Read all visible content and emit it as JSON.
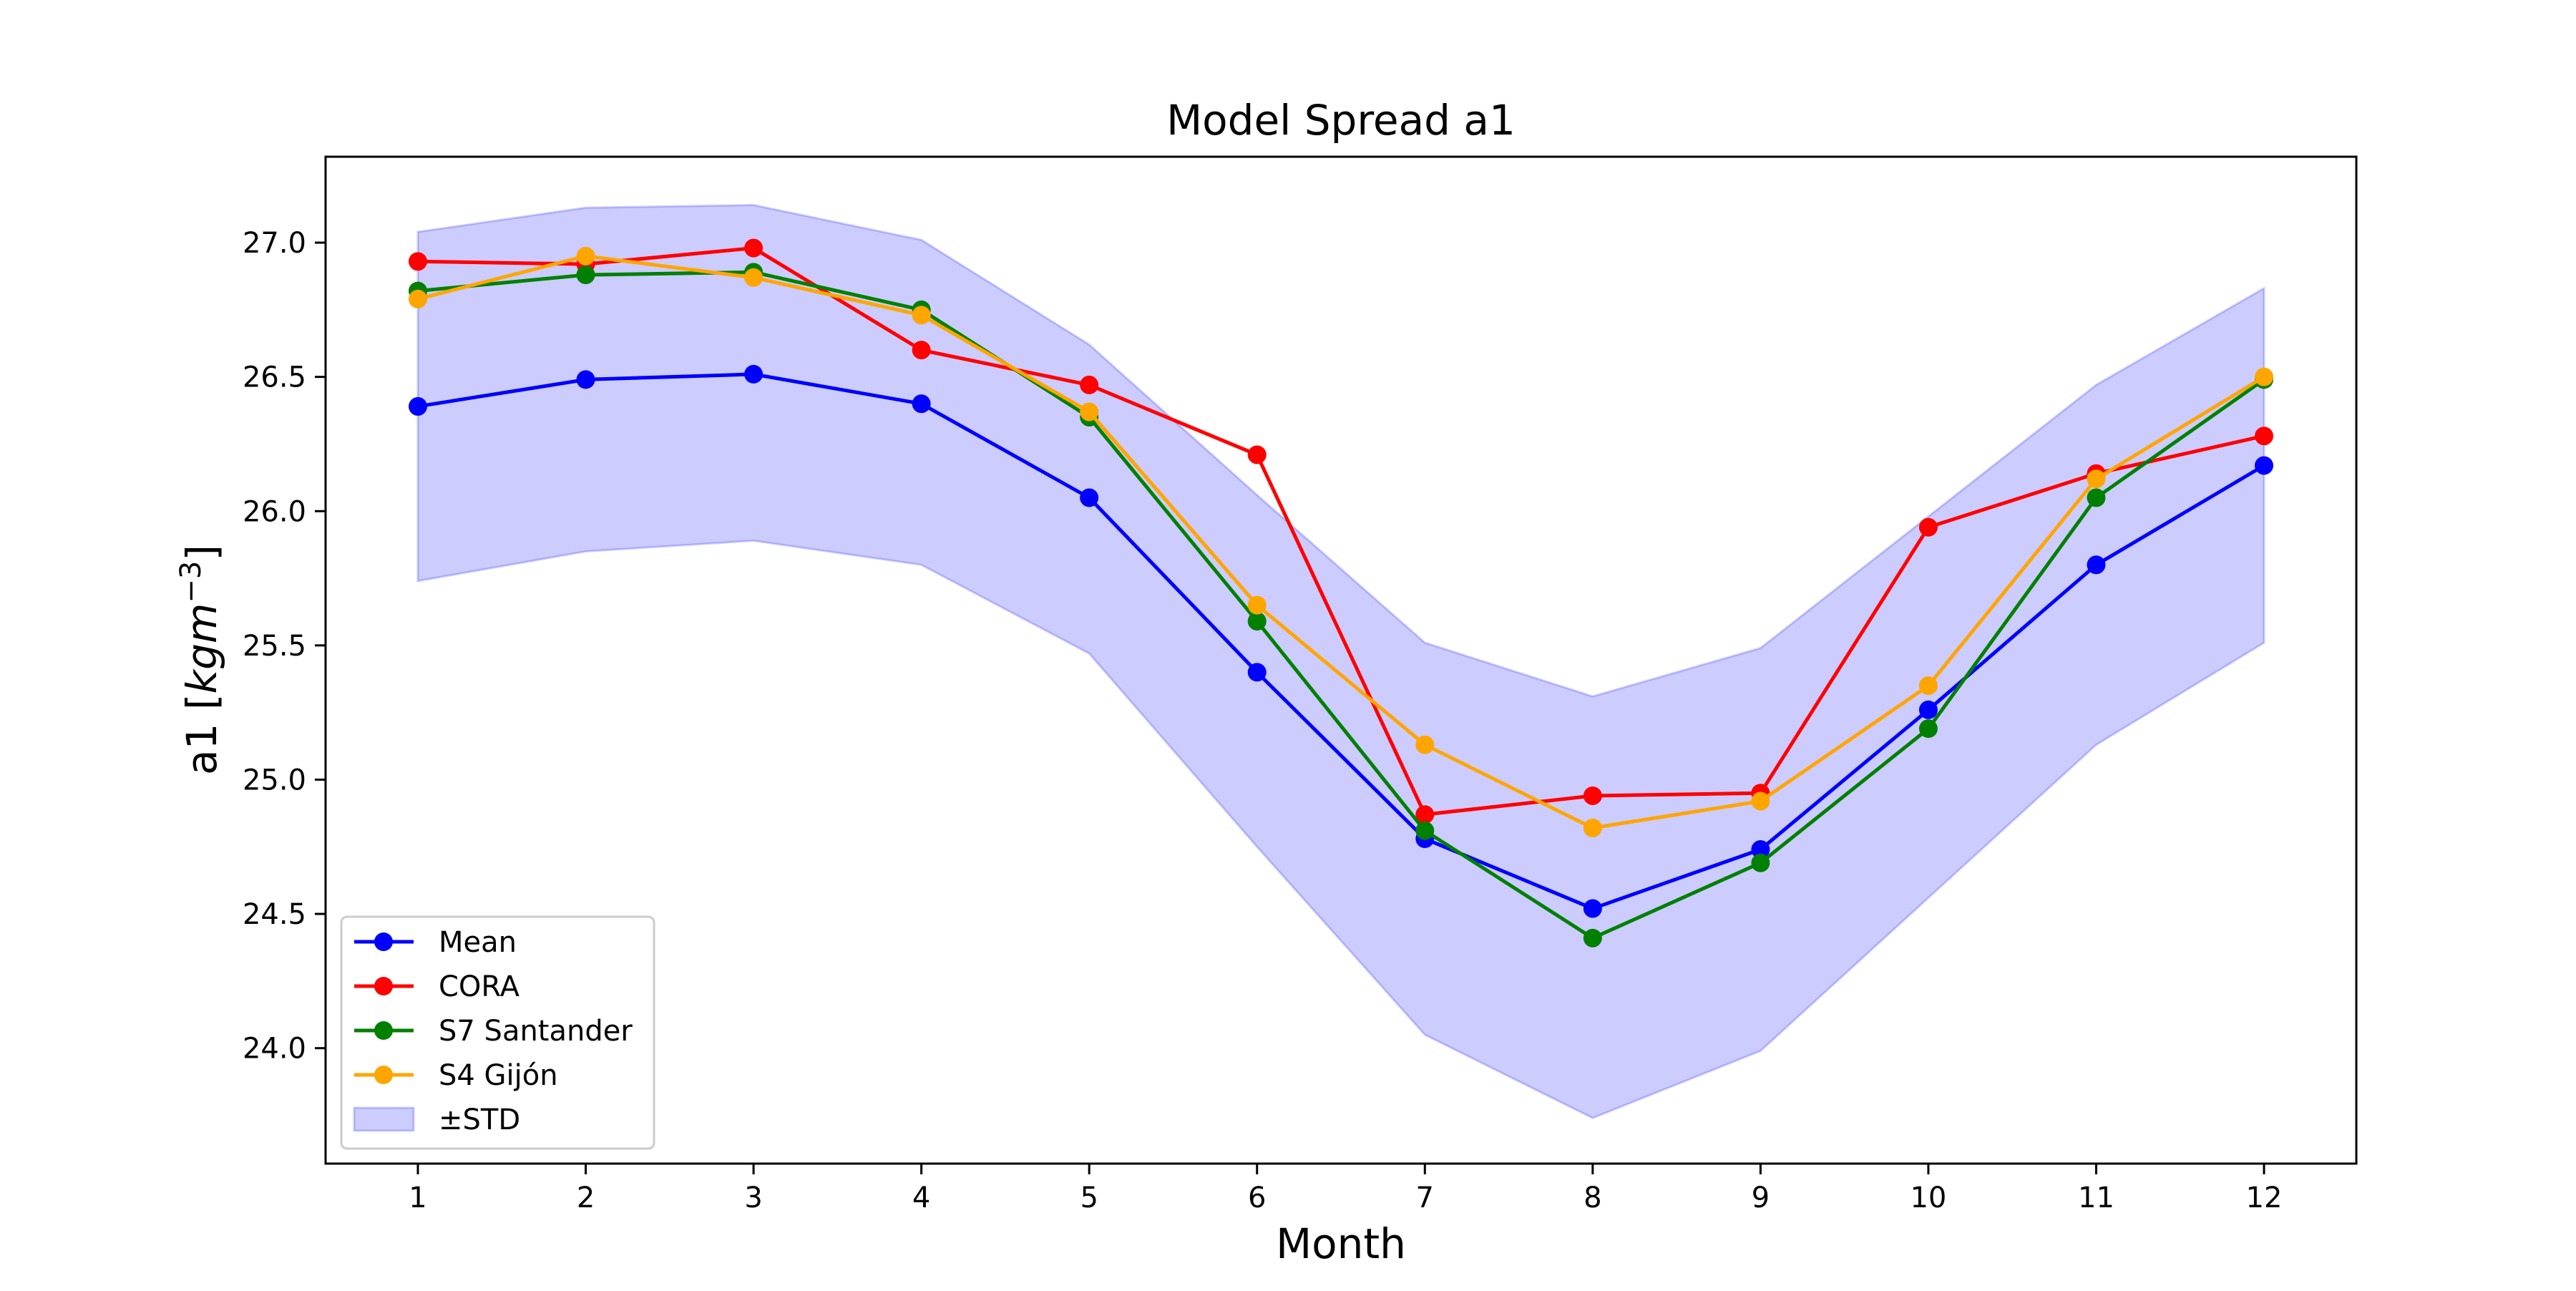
{
  "chart_data": {
    "type": "line",
    "title": "Model Spread a1",
    "xlabel": "Month",
    "ylabel": "a1 [kgm⁻³]",
    "ylabel_base": "a1 [",
    "ylabel_unit": "kgm",
    "ylabel_exp": "−3",
    "ylabel_close": "]",
    "x": [
      1,
      2,
      3,
      4,
      5,
      6,
      7,
      8,
      9,
      10,
      11,
      12
    ],
    "xticks": [
      "1",
      "2",
      "3",
      "4",
      "5",
      "6",
      "7",
      "8",
      "9",
      "10",
      "11",
      "12"
    ],
    "yticks": [
      "24.0",
      "24.5",
      "25.0",
      "25.5",
      "26.0",
      "26.5",
      "27.0"
    ],
    "xlim": [
      0.45,
      12.55
    ],
    "ylim": [
      23.57,
      27.32
    ],
    "grid": false,
    "legend_position": "lower-left",
    "series": [
      {
        "name": "Mean",
        "color": "#0000ff",
        "values": [
          26.39,
          26.49,
          26.51,
          26.4,
          26.05,
          25.4,
          24.78,
          24.52,
          24.74,
          25.26,
          25.8,
          26.17
        ]
      },
      {
        "name": "CORA",
        "color": "#ff0000",
        "values": [
          26.93,
          26.92,
          26.98,
          26.6,
          26.47,
          26.21,
          24.87,
          24.94,
          24.95,
          25.94,
          26.14,
          26.28
        ]
      },
      {
        "name": "S7 Santander",
        "color": "#008000",
        "values": [
          26.82,
          26.88,
          26.89,
          26.75,
          26.35,
          25.59,
          24.81,
          24.41,
          24.69,
          25.19,
          26.05,
          26.49
        ]
      },
      {
        "name": "S4 Gijón",
        "color": "#ffa500",
        "values": [
          26.79,
          26.95,
          26.87,
          26.73,
          26.37,
          25.65,
          25.13,
          24.82,
          24.92,
          25.35,
          26.12,
          26.5
        ]
      }
    ],
    "band": {
      "name": "±STD",
      "color": "#0000ff",
      "upper": [
        27.04,
        27.13,
        27.14,
        27.01,
        26.62,
        26.06,
        25.51,
        25.31,
        25.49,
        25.98,
        26.47,
        26.83
      ],
      "lower": [
        25.74,
        25.85,
        25.89,
        25.8,
        25.47,
        24.75,
        24.05,
        23.74,
        23.99,
        24.56,
        25.13,
        25.51
      ]
    }
  }
}
